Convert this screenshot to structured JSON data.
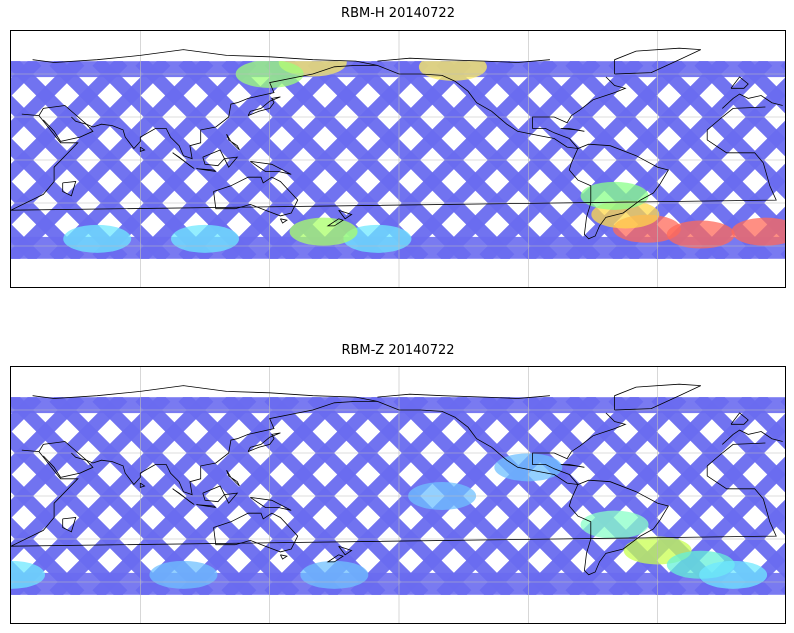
{
  "panels": [
    {
      "title": "RBM-H 20140722",
      "base_color": "#6a6cf0",
      "hotspots": [
        {
          "lon": -45,
          "lat": -48,
          "color": "#ff6a5a"
        },
        {
          "lon": -20,
          "lat": -52,
          "color": "#ff6a5a"
        },
        {
          "lon": -55,
          "lat": -38,
          "color": "#ffd84a"
        },
        {
          "lon": -60,
          "lat": -25,
          "color": "#8aff8a"
        },
        {
          "lon": 10,
          "lat": -50,
          "color": "#ff6a5a"
        },
        {
          "lon": 160,
          "lat": 68,
          "color": "#ffef60"
        },
        {
          "lon": -135,
          "lat": 65,
          "color": "#ffef60"
        },
        {
          "lon": 140,
          "lat": 60,
          "color": "#9dff7a"
        },
        {
          "lon": 110,
          "lat": -55,
          "color": "#6fe8ff"
        },
        {
          "lon": 60,
          "lat": -55,
          "color": "#6fe8ff"
        },
        {
          "lon": -170,
          "lat": -55,
          "color": "#6fe8ff"
        },
        {
          "lon": 165,
          "lat": -50,
          "color": "#aaff6a"
        }
      ]
    },
    {
      "title": "RBM-Z 20140722",
      "base_color": "#6a6cf0",
      "hotspots": [
        {
          "lon": -40,
          "lat": -38,
          "color": "#c8ff50"
        },
        {
          "lon": -20,
          "lat": -48,
          "color": "#66f0d8"
        },
        {
          "lon": -5,
          "lat": -55,
          "color": "#6fe8ff"
        },
        {
          "lon": 20,
          "lat": -55,
          "color": "#6fe8ff"
        },
        {
          "lon": -60,
          "lat": -20,
          "color": "#8affc8"
        },
        {
          "lon": 100,
          "lat": -55,
          "color": "#6fc0ff"
        },
        {
          "lon": 170,
          "lat": -55,
          "color": "#6fc0ff"
        },
        {
          "lon": -140,
          "lat": 0,
          "color": "#6fc0ff"
        },
        {
          "lon": -100,
          "lat": 20,
          "color": "#6fc0ff"
        }
      ]
    }
  ]
}
